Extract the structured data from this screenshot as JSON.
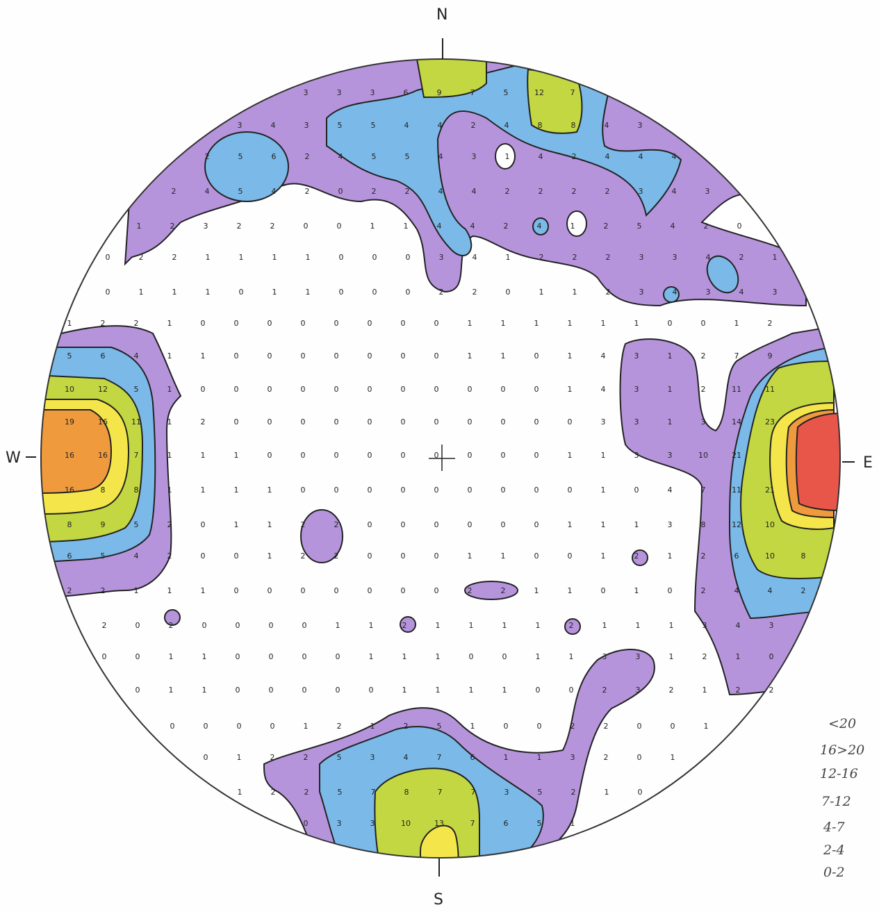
{
  "compass": {
    "north": "N",
    "south": "S",
    "east": "E",
    "west": "W"
  },
  "legend": [
    "<20",
    "16>20",
    "12-16",
    "7-12",
    "4-7",
    "2-4",
    "0-2"
  ],
  "colors": {
    "over_20": "#e8564a",
    "16_20": "#f09a3e",
    "12_16": "#f4e64a",
    "7_12": "#c3d742",
    "4_7": "#7ab9e8",
    "2_4": "#b694dc",
    "0_2": "#ffffff"
  },
  "grid_rows": [
    {
      "y": 133,
      "v": [
        "3",
        "3",
        "3",
        "6",
        "9",
        "7",
        "5",
        "12",
        "7"
      ],
      "x0": 440
    },
    {
      "y": 180,
      "v": [
        "3",
        "4",
        "3",
        "5",
        "5",
        "4",
        "4",
        "2",
        "4",
        "8",
        "8",
        "4",
        "3"
      ],
      "x0": 345
    },
    {
      "y": 225,
      "v": [
        "2",
        "5",
        "6",
        "2",
        "4",
        "5",
        "5",
        "4",
        "3",
        "1",
        "4",
        "2",
        "4",
        "4",
        "4"
      ],
      "x0": 298
    },
    {
      "y": 275,
      "v": [
        "2",
        "4",
        "5",
        "4",
        "2",
        "0",
        "2",
        "2",
        "4",
        "4",
        "2",
        "2",
        "2",
        "2",
        "3",
        "4",
        "3"
      ],
      "x0": 250
    },
    {
      "y": 325,
      "v": [
        "1",
        "2",
        "3",
        "2",
        "2",
        "0",
        "0",
        "1",
        "1",
        "4",
        "4",
        "2",
        "4",
        "1",
        "2",
        "5",
        "4",
        "2",
        "0"
      ],
      "x0": 200
    },
    {
      "y": 370,
      "v": [
        "0",
        "2",
        "2",
        "1",
        "1",
        "1",
        "1",
        "0",
        "0",
        "0",
        "3",
        "4",
        "1",
        "2",
        "2",
        "2",
        "3",
        "3",
        "4",
        "2",
        "1"
      ],
      "x0": 155
    },
    {
      "y": 420,
      "v": [
        "0",
        "1",
        "1",
        "1",
        "0",
        "1",
        "1",
        "0",
        "0",
        "0",
        "2",
        "2",
        "0",
        "1",
        "1",
        "2",
        "3",
        "4",
        "3",
        "4",
        "3"
      ],
      "x0": 155
    },
    {
      "y": 465,
      "v": [
        "1",
        "2",
        "2",
        "1",
        "0",
        "0",
        "0",
        "0",
        "0",
        "0",
        "0",
        "0",
        "1",
        "1",
        "1",
        "1",
        "1",
        "1",
        "0",
        "0",
        "1",
        "2"
      ],
      "x0": 100
    },
    {
      "y": 512,
      "v": [
        "5",
        "6",
        "4",
        "1",
        "1",
        "0",
        "0",
        "0",
        "0",
        "0",
        "0",
        "0",
        "1",
        "1",
        "0",
        "1",
        "4",
        "3",
        "1",
        "2",
        "7",
        "9"
      ],
      "x0": 100
    },
    {
      "y": 560,
      "v": [
        "10",
        "12",
        "5",
        "1",
        "0",
        "0",
        "0",
        "0",
        "0",
        "0",
        "0",
        "0",
        "0",
        "0",
        "0",
        "1",
        "4",
        "3",
        "1",
        "2",
        "11",
        "11"
      ],
      "x0": 100
    },
    {
      "y": 607,
      "v": [
        "19",
        "16",
        "11",
        "1",
        "2",
        "0",
        "0",
        "0",
        "0",
        "0",
        "0",
        "0",
        "0",
        "0",
        "0",
        "0",
        "3",
        "3",
        "1",
        "3",
        "14",
        "23"
      ],
      "x0": 100
    },
    {
      "y": 655,
      "v": [
        "16",
        "16",
        "7",
        "1",
        "1",
        "1",
        "0",
        "0",
        "0",
        "0",
        "0",
        "0",
        "0",
        "0",
        "0",
        "1",
        "1",
        "3",
        "3",
        "10",
        "21"
      ],
      "x0": 100
    },
    {
      "y": 705,
      "v": [
        "16",
        "8",
        "8",
        "1",
        "1",
        "1",
        "1",
        "0",
        "0",
        "0",
        "0",
        "0",
        "0",
        "0",
        "0",
        "0",
        "1",
        "0",
        "4",
        "7",
        "11",
        "21"
      ],
      "x0": 100
    },
    {
      "y": 755,
      "v": [
        "8",
        "9",
        "5",
        "2",
        "0",
        "1",
        "1",
        "2",
        "2",
        "0",
        "0",
        "0",
        "0",
        "0",
        "0",
        "1",
        "1",
        "1",
        "3",
        "8",
        "12",
        "10"
      ],
      "x0": 100
    },
    {
      "y": 800,
      "v": [
        "6",
        "5",
        "4",
        "2",
        "0",
        "0",
        "1",
        "2",
        "2",
        "0",
        "0",
        "0",
        "1",
        "1",
        "0",
        "0",
        "1",
        "2",
        "1",
        "2",
        "6",
        "10",
        "8"
      ],
      "x0": 100
    },
    {
      "y": 850,
      "v": [
        "2",
        "2",
        "1",
        "1",
        "1",
        "0",
        "0",
        "0",
        "0",
        "0",
        "0",
        "0",
        "2",
        "2",
        "1",
        "1",
        "0",
        "1",
        "0",
        "2",
        "4",
        "4",
        "2"
      ],
      "x0": 100
    },
    {
      "y": 900,
      "v": [
        "2",
        "0",
        "2",
        "0",
        "0",
        "0",
        "0",
        "1",
        "1",
        "2",
        "1",
        "1",
        "1",
        "1",
        "2",
        "1",
        "1",
        "1",
        "3",
        "4",
        "3"
      ],
      "x0": 150
    },
    {
      "y": 945,
      "v": [
        "0",
        "0",
        "1",
        "1",
        "0",
        "0",
        "0",
        "0",
        "1",
        "1",
        "1",
        "0",
        "0",
        "1",
        "1",
        "3",
        "3",
        "1",
        "2",
        "1",
        "0"
      ],
      "x0": 150
    },
    {
      "y": 993,
      "v": [
        "0",
        "1",
        "1",
        "0",
        "0",
        "0",
        "0",
        "0",
        "1",
        "1",
        "1",
        "1",
        "0",
        "0",
        "2",
        "3",
        "2",
        "1",
        "2",
        "2"
      ],
      "x0": 198
    },
    {
      "y": 1045,
      "v": [
        "0",
        "0",
        "0",
        "0",
        "1",
        "2",
        "1",
        "2",
        "5",
        "1",
        "0",
        "0",
        "2",
        "2",
        "0",
        "0",
        "1"
      ],
      "x0": 248
    },
    {
      "y": 1090,
      "v": [
        "0",
        "1",
        "2",
        "2",
        "5",
        "3",
        "4",
        "7",
        "6",
        "1",
        "1",
        "3",
        "2",
        "0",
        "1"
      ],
      "x0": 296
    },
    {
      "y": 1140,
      "v": [
        "1",
        "2",
        "2",
        "5",
        "7",
        "8",
        "7",
        "7",
        "3",
        "5",
        "2",
        "1",
        "0"
      ],
      "x0": 345
    },
    {
      "y": 1185,
      "v": [
        "0",
        "3",
        "3",
        "10",
        "13",
        "7",
        "6",
        "5",
        "1"
      ],
      "x0": 440
    }
  ]
}
